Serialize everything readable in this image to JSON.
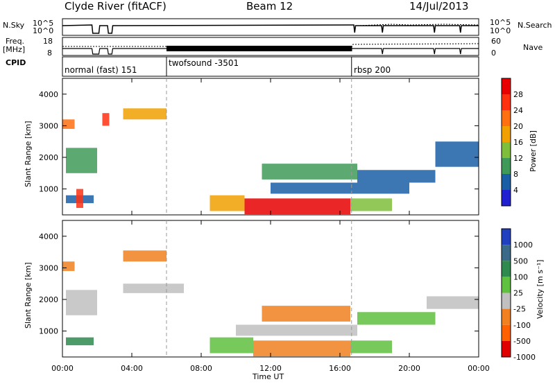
{
  "header": {
    "station": "Clyde River (fitACF)",
    "beam": "Beam 12",
    "date": "14/Jul/2013"
  },
  "top_panel": {
    "nsky_label": "N.Sky",
    "nsky_ticks": [
      "10^5",
      "10^0"
    ],
    "nsearch_label": "N.Search",
    "nsearch_ticks": [
      "10^5",
      "10^0"
    ],
    "freq_label": [
      "Freq.",
      "[MHz]"
    ],
    "freq_ticks": [
      "18",
      "8"
    ],
    "nave_label": "Nave",
    "nave_ticks": [
      "60",
      "0"
    ],
    "cpid_label": "CPID",
    "cpid_segments": [
      {
        "label": "normal (fast) 151",
        "start_hour": 0
      },
      {
        "label": "twofsound -3501",
        "start_hour": 6
      },
      {
        "label": "rbsp 200",
        "start_hour": 16.67
      }
    ]
  },
  "colors": {
    "power": [
      "#2020d0",
      "#1a5fa6",
      "#3f9a59",
      "#7fbe3a",
      "#f0a000",
      "#ff7010",
      "#ff3010",
      "#e80000"
    ],
    "velocity": [
      "#2040c0",
      "#3a6a88",
      "#2f8a50",
      "#60c040",
      "#c0c0c0",
      "#f08020",
      "#ff6000",
      "#e00000"
    ]
  },
  "chart_data": [
    {
      "type": "heatmap",
      "title": "Power",
      "ylabel": "Slant Range [km]",
      "xlabel": "",
      "xlim": [
        0,
        24
      ],
      "ylim": [
        180,
        4500
      ],
      "yticks": [
        "1000",
        "2000",
        "3000",
        "4000"
      ],
      "xticks": [
        "00:00",
        "04:00",
        "08:00",
        "12:00",
        "16:00",
        "20:00",
        "00:00"
      ],
      "colorbar": {
        "label": "Power [dB]",
        "ticks": [
          "4",
          "8",
          "12",
          "16",
          "20",
          "24",
          "28"
        ]
      },
      "regions": [
        {
          "x0": 0.0,
          "x1": 0.7,
          "y0": 2900,
          "y1": 3200,
          "c": 5
        },
        {
          "x0": 0.2,
          "x1": 2.0,
          "y0": 1500,
          "y1": 2300,
          "c": 2
        },
        {
          "x0": 0.2,
          "x1": 1.8,
          "y0": 550,
          "y1": 800,
          "c": 1
        },
        {
          "x0": 0.8,
          "x1": 1.2,
          "y0": 400,
          "y1": 1000,
          "c": 6
        },
        {
          "x0": 3.5,
          "x1": 6.0,
          "y0": 3200,
          "y1": 3550,
          "c": 4
        },
        {
          "x0": 2.3,
          "x1": 2.7,
          "y0": 3000,
          "y1": 3400,
          "c": 6
        },
        {
          "x0": 8.5,
          "x1": 10.5,
          "y0": 300,
          "y1": 800,
          "c": 4
        },
        {
          "x0": 10.5,
          "x1": 16.6,
          "y0": 200,
          "y1": 700,
          "c": 7
        },
        {
          "x0": 16.6,
          "x1": 19.0,
          "y0": 300,
          "y1": 700,
          "c": 3
        },
        {
          "x0": 11.5,
          "x1": 17.0,
          "y0": 1300,
          "y1": 1800,
          "c": 2
        },
        {
          "x0": 17.0,
          "x1": 21.5,
          "y0": 1200,
          "y1": 1600,
          "c": 1
        },
        {
          "x0": 21.5,
          "x1": 24.0,
          "y0": 1700,
          "y1": 2500,
          "c": 1
        },
        {
          "x0": 12.0,
          "x1": 20.0,
          "y0": 850,
          "y1": 1200,
          "c": 1
        }
      ]
    },
    {
      "type": "heatmap",
      "title": "Velocity",
      "ylabel": "Slant Range [km]",
      "xlabel": "Time UT",
      "xlim": [
        0,
        24
      ],
      "ylim": [
        180,
        4500
      ],
      "yticks": [
        "1000",
        "2000",
        "3000",
        "4000"
      ],
      "xticks": [
        "00:00",
        "04:00",
        "08:00",
        "12:00",
        "16:00",
        "20:00",
        "00:00"
      ],
      "colorbar": {
        "label": "Velocity [m s⁻¹]",
        "ticks": [
          "1000",
          "500",
          "100",
          "25",
          "-25",
          "-100",
          "-500",
          "-1000"
        ]
      },
      "regions": [
        {
          "x0": 0.0,
          "x1": 0.7,
          "y0": 2900,
          "y1": 3200,
          "c": 5
        },
        {
          "x0": 0.2,
          "x1": 2.0,
          "y0": 1500,
          "y1": 2300,
          "c": 4
        },
        {
          "x0": 0.2,
          "x1": 1.8,
          "y0": 550,
          "y1": 800,
          "c": 2
        },
        {
          "x0": 3.5,
          "x1": 6.0,
          "y0": 3200,
          "y1": 3550,
          "c": 5
        },
        {
          "x0": 3.5,
          "x1": 7.0,
          "y0": 2200,
          "y1": 2500,
          "c": 4
        },
        {
          "x0": 8.5,
          "x1": 11.0,
          "y0": 300,
          "y1": 800,
          "c": 3
        },
        {
          "x0": 11.0,
          "x1": 16.6,
          "y0": 200,
          "y1": 700,
          "c": 5
        },
        {
          "x0": 16.6,
          "x1": 19.0,
          "y0": 300,
          "y1": 700,
          "c": 3
        },
        {
          "x0": 11.5,
          "x1": 16.6,
          "y0": 1300,
          "y1": 1800,
          "c": 5
        },
        {
          "x0": 17.0,
          "x1": 21.5,
          "y0": 1200,
          "y1": 1600,
          "c": 3
        },
        {
          "x0": 21.0,
          "x1": 24.0,
          "y0": 1700,
          "y1": 2100,
          "c": 4
        },
        {
          "x0": 10.0,
          "x1": 17.0,
          "y0": 850,
          "y1": 1200,
          "c": 4
        }
      ]
    }
  ]
}
